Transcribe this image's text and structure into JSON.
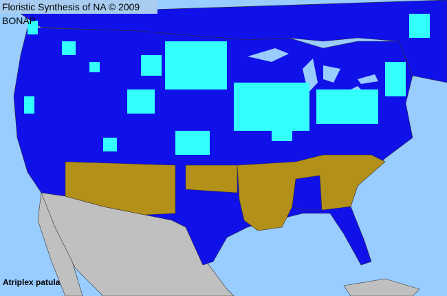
{
  "header": {
    "title": "Floristic Synthesis of NA © 2009 BONAP"
  },
  "map": {
    "species": "Atriplex patula",
    "colors": {
      "ocean": "#99ccff",
      "present_in_state": "#1010e8",
      "present_in_county": "#33ffff",
      "absent_region": "#b3901a",
      "outside_range": "#c0c0c0",
      "borders": "#333333"
    }
  }
}
